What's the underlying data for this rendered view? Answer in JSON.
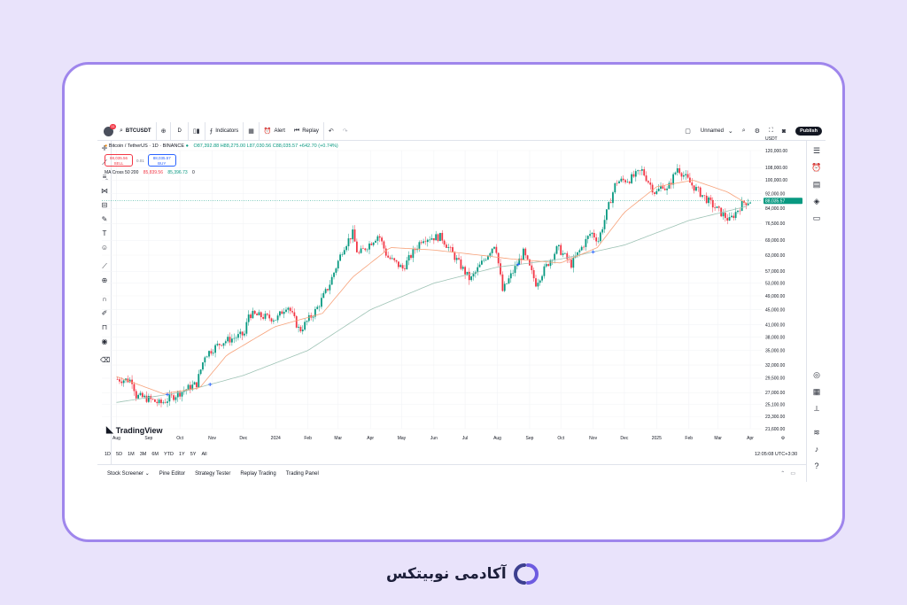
{
  "topbar": {
    "avatar_badge": "11",
    "symbol": "BTCUSDT",
    "add_icon": "plus-circle-icon",
    "interval": "D",
    "bar_style_icon": "candles-icon",
    "indicators_label": "Indicators",
    "layout_icon": "templates-icon",
    "alert_label": "Alert",
    "replay_label": "Replay",
    "layout_name": "Unnamed",
    "publish_label": "Publish"
  },
  "legend": {
    "title": "Bitcoin / TetherUS · 1D · BINANCE",
    "ohlc": "O87,392.88 H88,275.00 L87,030.56 C88,035.57 +642.70 (+0.74%)",
    "sell_price": "88,035.56",
    "sell_label": "SELL",
    "spread": "0.01",
    "buy_price": "88,035.57",
    "buy_label": "BUY",
    "ma_label": "MA Cross 50 200",
    "ma_fast": "85,839.56",
    "ma_slow": "85,396.73",
    "ma_extra": "0"
  },
  "brand_tv": "TradingView",
  "currency": "USDT",
  "last_price": "88,035.57",
  "time_ranges": [
    "1D",
    "5D",
    "1M",
    "3M",
    "6M",
    "YTD",
    "1Y",
    "5Y",
    "All"
  ],
  "clock": "12:05:08 UTC+3:30",
  "panel": [
    "Stock Screener",
    "Pine Editor",
    "Strategy Tester",
    "Replay Trading",
    "Trading Panel"
  ],
  "footer_brand": "آکادمی نوبیتکس",
  "colors": {
    "up": "#089981",
    "down": "#f23645",
    "ma_fast": "#f7a27a",
    "ma_slow": "#9ec3b5",
    "frame": "#9f86ec",
    "background": "#e9e3fb"
  },
  "chart_data": {
    "type": "candlestick",
    "symbol": "BTCUSDT",
    "interval": "1D",
    "scale": "log",
    "grid": true,
    "x_labels": [
      "Aug",
      "Sep",
      "Oct",
      "Nov",
      "Dec",
      "2024",
      "Feb",
      "Mar",
      "Apr",
      "May",
      "Jun",
      "Jul",
      "Aug",
      "Sep",
      "Oct",
      "Nov",
      "Dec",
      "2025",
      "Feb",
      "Mar",
      "Apr"
    ],
    "y_labels": [
      "120,000.00",
      "108,000.00",
      "100,000.00",
      "92,000.00",
      "84,000.00",
      "76,500.00",
      "69,000.00",
      "63,000.00",
      "57,000.00",
      "53,000.00",
      "49,000.00",
      "45,000.00",
      "41,000.00",
      "38,000.00",
      "35,000.00",
      "32,000.00",
      "29,500.00",
      "27,000.00",
      "25,100.00",
      "23,300.00",
      "21,600.00"
    ],
    "price_series": {
      "name": "BTCUSDT",
      "points": [
        [
          "2023-08-01",
          29300
        ],
        [
          "2023-08-16",
          29100
        ],
        [
          "2023-08-18",
          26500
        ],
        [
          "2023-09-01",
          25900
        ],
        [
          "2023-09-11",
          25200
        ],
        [
          "2023-10-01",
          27100
        ],
        [
          "2023-10-16",
          28500
        ],
        [
          "2023-10-24",
          34000
        ],
        [
          "2023-11-09",
          36800
        ],
        [
          "2023-12-01",
          38700
        ],
        [
          "2023-12-05",
          43800
        ],
        [
          "2024-01-01",
          42500
        ],
        [
          "2024-01-11",
          46500
        ],
        [
          "2024-01-23",
          39500
        ],
        [
          "2024-02-08",
          45000
        ],
        [
          "2024-02-20",
          52000
        ],
        [
          "2024-03-05",
          66000
        ],
        [
          "2024-03-14",
          72000
        ],
        [
          "2024-03-19",
          63000
        ],
        [
          "2024-04-08",
          71500
        ],
        [
          "2024-04-16",
          62500
        ],
        [
          "2024-05-01",
          58000
        ],
        [
          "2024-05-20",
          70000
        ],
        [
          "2024-06-07",
          70500
        ],
        [
          "2024-07-05",
          54000
        ],
        [
          "2024-07-29",
          68000
        ],
        [
          "2024-08-05",
          50500
        ],
        [
          "2024-08-25",
          64000
        ],
        [
          "2024-09-06",
          53000
        ],
        [
          "2024-09-27",
          66000
        ],
        [
          "2024-10-10",
          59500
        ],
        [
          "2024-10-29",
          72500
        ],
        [
          "2024-11-05",
          69000
        ],
        [
          "2024-11-22",
          99000
        ],
        [
          "2024-12-05",
          100500
        ],
        [
          "2024-12-17",
          106000
        ],
        [
          "2024-12-30",
          92000
        ],
        [
          "2025-01-07",
          98000
        ],
        [
          "2025-01-09",
          92500
        ],
        [
          "2025-01-20",
          108000
        ],
        [
          "2025-02-03",
          97000
        ],
        [
          "2025-02-26",
          84000
        ],
        [
          "2025-03-11",
          78000
        ],
        [
          "2025-03-24",
          87000
        ],
        [
          "2025-03-31",
          88035.57
        ]
      ]
    },
    "ma_fast": {
      "name": "MA 50",
      "points": [
        [
          "2023-08-01",
          29800
        ],
        [
          "2023-09-15",
          26800
        ],
        [
          "2023-10-20",
          27800
        ],
        [
          "2023-11-15",
          34000
        ],
        [
          "2023-12-31",
          40500
        ],
        [
          "2024-02-15",
          44000
        ],
        [
          "2024-03-15",
          55000
        ],
        [
          "2024-04-20",
          66000
        ],
        [
          "2024-06-01",
          65000
        ],
        [
          "2024-07-15",
          63000
        ],
        [
          "2024-08-15",
          61500
        ],
        [
          "2024-10-01",
          60000
        ],
        [
          "2024-11-05",
          66000
        ],
        [
          "2024-12-01",
          82000
        ],
        [
          "2025-01-01",
          96000
        ],
        [
          "2025-02-05",
          100000
        ],
        [
          "2025-03-10",
          93000
        ],
        [
          "2025-03-31",
          85839.56
        ]
      ]
    },
    "ma_slow": {
      "name": "MA 200",
      "points": [
        [
          "2023-08-01",
          25400
        ],
        [
          "2023-10-01",
          27000
        ],
        [
          "2023-12-01",
          30000
        ],
        [
          "2024-02-01",
          35000
        ],
        [
          "2024-04-01",
          45000
        ],
        [
          "2024-06-01",
          53000
        ],
        [
          "2024-08-01",
          58500
        ],
        [
          "2024-10-01",
          61500
        ],
        [
          "2024-12-01",
          67000
        ],
        [
          "2025-02-01",
          78000
        ],
        [
          "2025-03-31",
          85396.73
        ]
      ]
    },
    "cross_markers": [
      "2023-09-19",
      "2023-10-30",
      "2024-08-21",
      "2024-11-01"
    ],
    "ylim": [
      21600,
      120000
    ]
  }
}
